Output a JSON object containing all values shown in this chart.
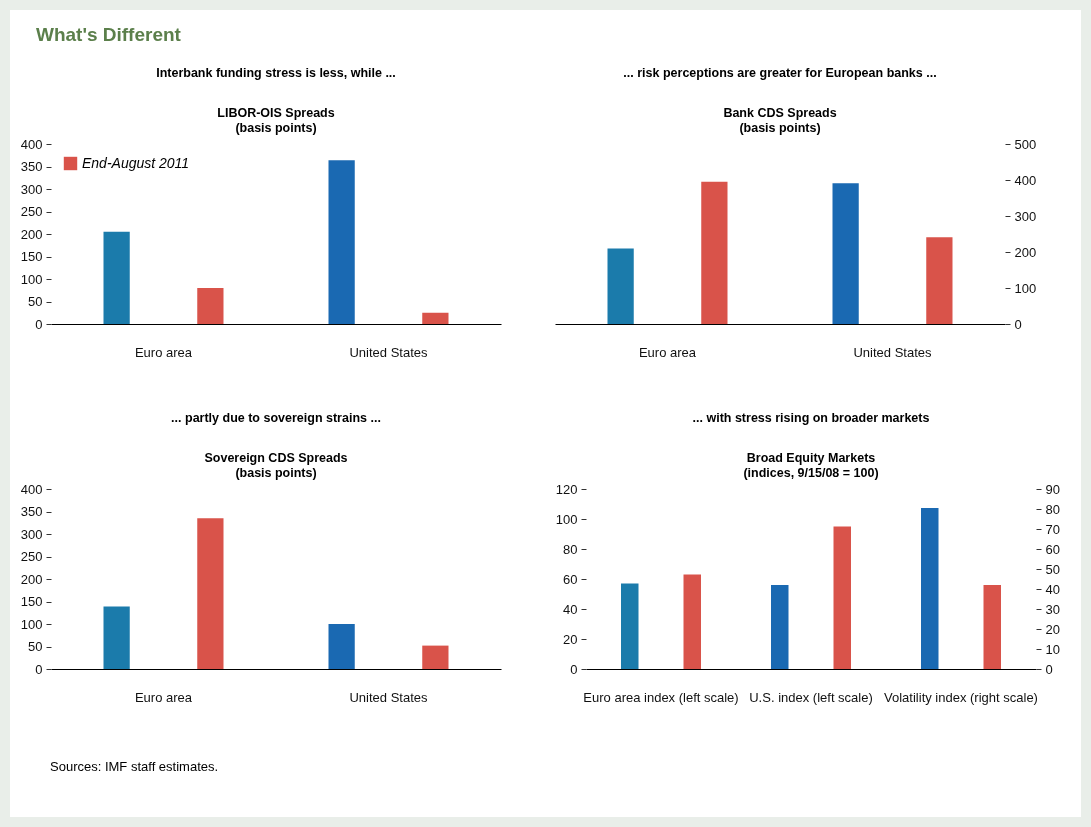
{
  "chart_data": [
    {
      "type": "bar",
      "title": "Interbank funding stress is less, while ...",
      "subtitle": "LIBOR-OIS Spreads\n(basis points)",
      "categories": [
        "Euro area",
        "United States"
      ],
      "series": [
        {
          "colors": [
            "#1b7bab",
            "#1a69b2"
          ],
          "values": [
            205,
            364
          ]
        },
        {
          "name": "End-August 2011",
          "color": "#d9534a",
          "values": [
            80,
            25
          ]
        }
      ],
      "ylim": [
        0,
        400
      ],
      "yticks": [
        0,
        50,
        100,
        150,
        200,
        250,
        300,
        350,
        400
      ],
      "legend": "top left",
      "annotations": [
        "What's Different"
      ]
    },
    {
      "type": "bar",
      "title": "... risk perceptions are greater for European banks ...",
      "subtitle": "Bank CDS Spreads\n(basis points)",
      "categories": [
        "Euro area",
        "United States"
      ],
      "series": [
        {
          "colors": [
            "#1b7bab",
            "#1a69b2"
          ],
          "values": [
            210,
            391
          ],
          "axis": "y2"
        },
        {
          "color": "#d9534a",
          "values": [
            395,
            241
          ],
          "axis": "y2"
        }
      ],
      "y2lim": [
        0,
        500
      ],
      "y2ticks": [
        0,
        100,
        200,
        300,
        400,
        500
      ]
    },
    {
      "type": "bar",
      "title": "... partly due to sovereign strains ...",
      "subtitle": "Sovereign CDS Spreads\n(basis points)",
      "categories": [
        "Euro area",
        "United States"
      ],
      "series": [
        {
          "colors": [
            "#1b7bab",
            "#1a69b2"
          ],
          "values": [
            139,
            100
          ]
        },
        {
          "color": "#d9534a",
          "values": [
            335,
            52
          ]
        }
      ],
      "ylim": [
        0,
        400
      ],
      "yticks": [
        0,
        50,
        100,
        150,
        200,
        250,
        300,
        350,
        400
      ]
    },
    {
      "type": "bar",
      "title": "... with stress rising on broader markets",
      "subtitle": "Broad Equity Markets\n(indices, 9/15/08 = 100)",
      "categories": [
        "Euro area index\n(left scale)",
        "U.S. index\n(left scale)",
        "Volatility index\n(right scale)"
      ],
      "series": [
        {
          "colors": [
            "#1b7bab",
            "#1a69b2",
            null
          ],
          "values": [
            57,
            56,
            null
          ]
        },
        {
          "color": "#d9534a",
          "values": [
            63,
            95,
            null
          ]
        },
        {
          "color": "#1a69b2",
          "values": [
            null,
            null,
            80.5
          ],
          "axis": "y2"
        },
        {
          "color": "#d9534a",
          "values": [
            null,
            null,
            42
          ],
          "axis": "y2"
        }
      ],
      "ylim": [
        0,
        120
      ],
      "yticks": [
        0,
        20,
        40,
        60,
        80,
        100,
        120
      ],
      "y2lim": [
        0,
        90
      ],
      "y2ticks": [
        0,
        10,
        20,
        30,
        40,
        50,
        60,
        70,
        80,
        90
      ],
      "annotations": [
        "Sources: IMF staff estimates."
      ]
    }
  ]
}
